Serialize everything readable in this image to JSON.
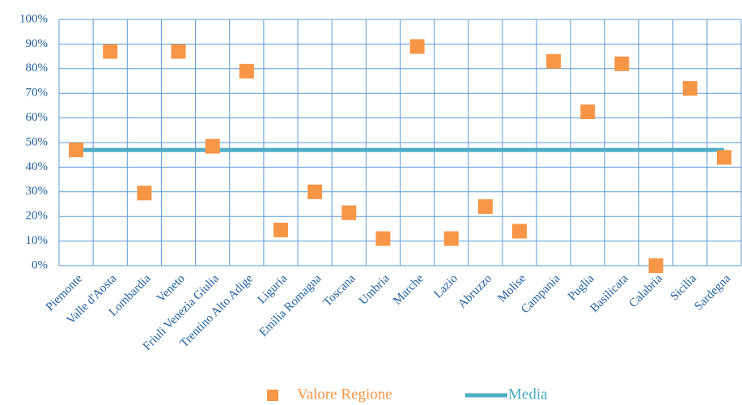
{
  "chart_data": {
    "type": "combo",
    "categories": [
      "Piemonte",
      "Valle d'Aosta",
      "Lombardia",
      "Veneto",
      "Friuli Venezia Giulia",
      "Trentino Alto Adige",
      "Liguria",
      "Emilia Romagna",
      "Toscana",
      "Umbria",
      "Marche",
      "Lazio",
      "Abruzzo",
      "Molise",
      "Campania",
      "Puglia",
      "Basilicata",
      "Calabria",
      "Sicilia",
      "Sardegna"
    ],
    "series": [
      {
        "name": "Valore Regione",
        "type": "scatter",
        "color": "#f79646",
        "values": [
          47,
          87,
          29.5,
          87,
          48.5,
          79,
          14.5,
          30,
          21.5,
          11,
          89,
          11,
          24,
          14,
          83,
          62.5,
          82,
          0,
          72,
          44
        ]
      },
      {
        "name": "Media",
        "type": "line",
        "color": "#4bacc6",
        "values": [
          47,
          47,
          47,
          47,
          47,
          47,
          47,
          47,
          47,
          47,
          47,
          47,
          47,
          47,
          47,
          47,
          47,
          47,
          47,
          47
        ]
      }
    ],
    "ylim": [
      0,
      100
    ],
    "yticks": [
      {
        "value": 0,
        "label": "0%"
      },
      {
        "value": 10,
        "label": "10%"
      },
      {
        "value": 20,
        "label": "20%"
      },
      {
        "value": 30,
        "label": "30%"
      },
      {
        "value": 40,
        "label": "40%"
      },
      {
        "value": 50,
        "label": "50%"
      },
      {
        "value": 60,
        "label": "60%"
      },
      {
        "value": 70,
        "label": "70%"
      },
      {
        "value": 80,
        "label": "80%"
      },
      {
        "value": 90,
        "label": "90%"
      },
      {
        "value": 100,
        "label": "100%"
      }
    ],
    "grid": true,
    "legend": "bottom"
  }
}
